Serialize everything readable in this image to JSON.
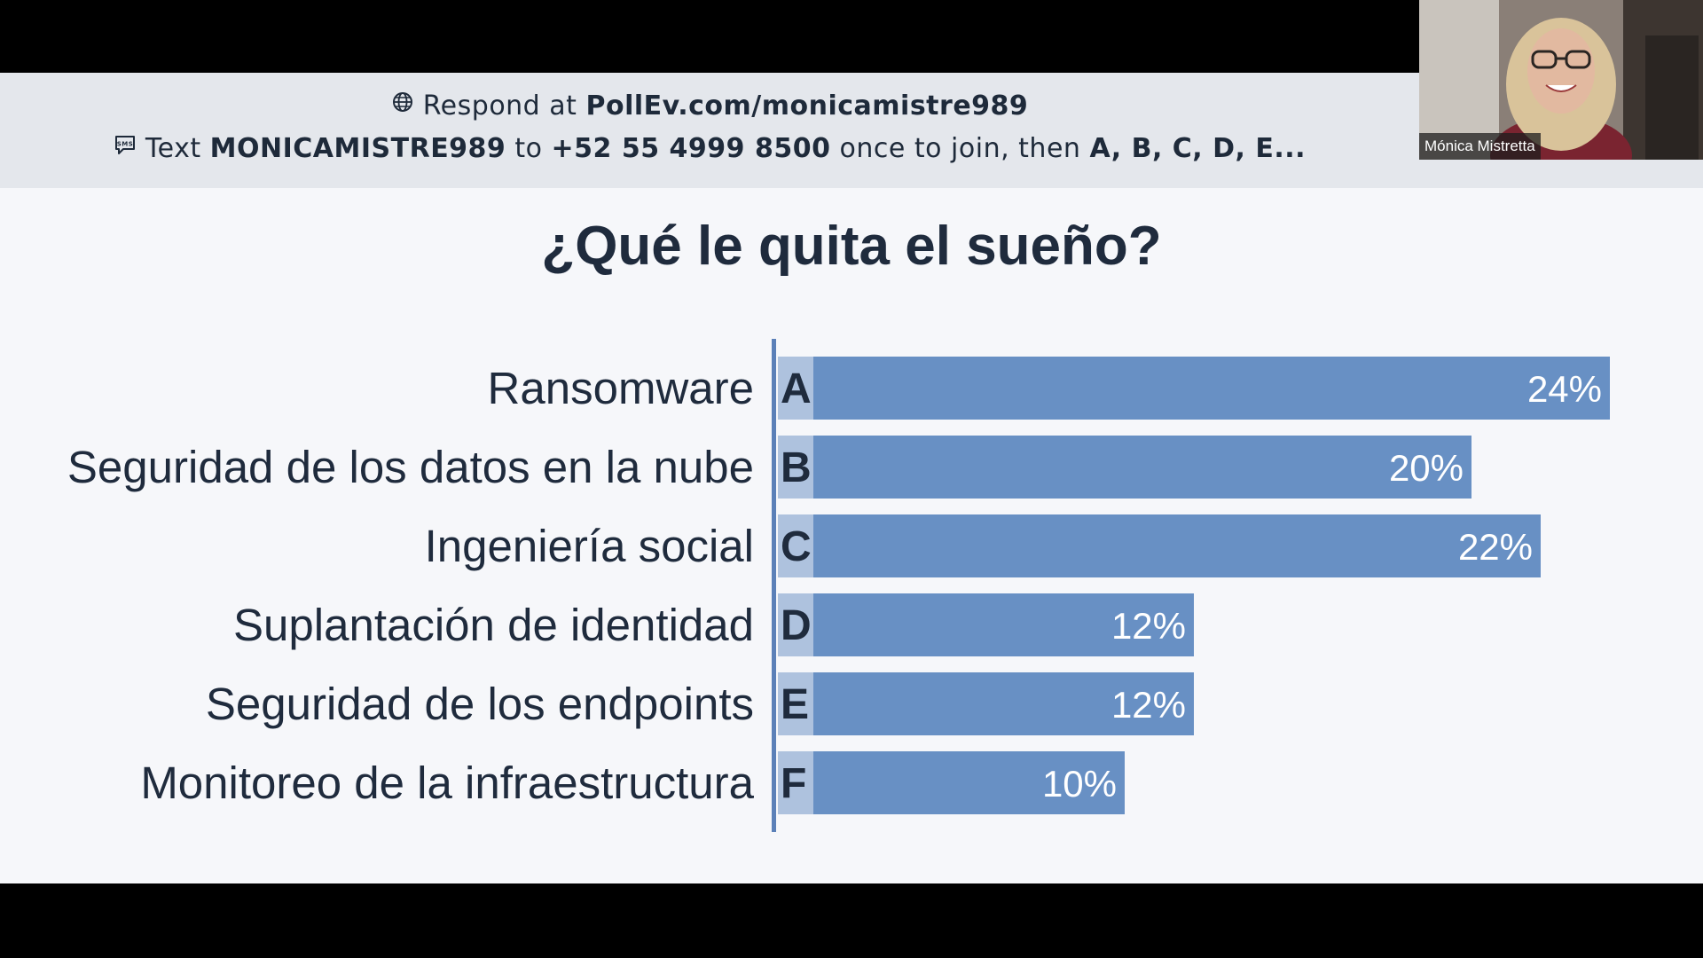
{
  "respond": {
    "line1_prefix": "Respond at",
    "url": "PollEv.com/monicamistre989",
    "line2_text": "Text",
    "keyword": "MONICAMISTRE989",
    "to": "to",
    "phone": "+52 55 4999 8500",
    "join": "once to join, then",
    "choices": "A, B, C, D, E..."
  },
  "poll": {
    "title": "¿Qué le quita el sueño?"
  },
  "chart_data": {
    "type": "bar",
    "orientation": "horizontal",
    "title": "¿Qué le quita el sueño?",
    "categories": [
      "Ransomware",
      "Seguridad de los datos en la nube",
      "Ingeniería social",
      "Suplantación de identidad",
      "Seguridad de los endpoints",
      "Monitoreo de la infraestructura"
    ],
    "letters": [
      "A",
      "B",
      "C",
      "D",
      "E",
      "F"
    ],
    "values": [
      24,
      20,
      22,
      12,
      12,
      10
    ],
    "value_labels": [
      "24%",
      "20%",
      "22%",
      "12%",
      "12%",
      "10%"
    ],
    "unit": "%",
    "xlim": [
      0,
      24
    ],
    "grid": false,
    "bar_color": "#6890c4",
    "letter_box_color": "#aec2de"
  },
  "webcam": {
    "participant_name": "Mónica Mistretta"
  },
  "colors": {
    "respond_bar_bg": "#e4e7ec",
    "slide_bg": "#f6f7fa",
    "text_dark": "#1f2b3d",
    "axis": "#5b80b8"
  },
  "icons": {
    "web": "globe-icon",
    "sms": "sms-icon"
  }
}
